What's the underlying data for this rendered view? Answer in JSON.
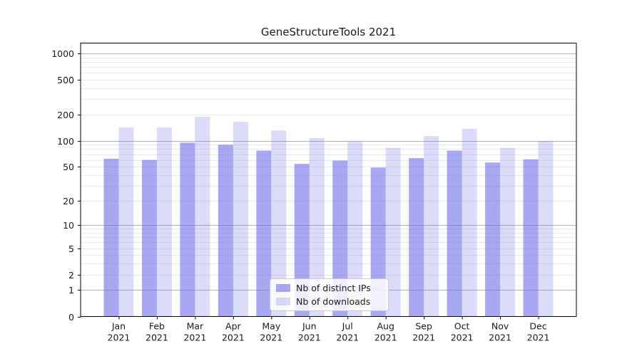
{
  "title": "GeneStructureTools 2021",
  "chart_data": {
    "type": "bar",
    "title": "GeneStructureTools 2021",
    "yscale": "log1p",
    "ylim": [
      0,
      1000
    ],
    "yticks": [
      0,
      1,
      2,
      5,
      10,
      20,
      50,
      100,
      200,
      500,
      1000
    ],
    "major_grid_values": [
      1,
      10,
      100,
      1000
    ],
    "minor_grid_values": [
      2,
      3,
      4,
      5,
      6,
      7,
      8,
      9,
      20,
      30,
      40,
      50,
      60,
      70,
      80,
      90,
      200,
      300,
      400,
      500,
      600,
      700,
      800,
      900
    ],
    "months": [
      "Jan",
      "Feb",
      "Mar",
      "Apr",
      "May",
      "Jun",
      "Jul",
      "Aug",
      "Sep",
      "Oct",
      "Nov",
      "Dec"
    ],
    "year": "2021",
    "series": [
      {
        "name": "Nb of distinct IPs",
        "values": [
          62,
          60,
          95,
          90,
          77,
          54,
          59,
          49,
          63,
          77,
          56,
          61
        ]
      },
      {
        "name": "Nb of downloads",
        "values": [
          142,
          142,
          188,
          165,
          131,
          107,
          98,
          83,
          113,
          137,
          83,
          99
        ]
      }
    ],
    "grid": true,
    "legend_position": "lower center inside"
  },
  "legend": {
    "items": [
      {
        "label": "Nb of distinct IPs"
      },
      {
        "label": "Nb of downloads"
      }
    ]
  },
  "colors": {
    "bar_primary": "rgba(103,103,233,0.58)",
    "bar_secondary": "rgba(103,103,233,0.24)",
    "major_grid": "#b2b2b2",
    "minor_grid": "#eaeaea",
    "axis": "#000000",
    "text": "#1a1a1a",
    "legend_border": "#cccccc"
  }
}
